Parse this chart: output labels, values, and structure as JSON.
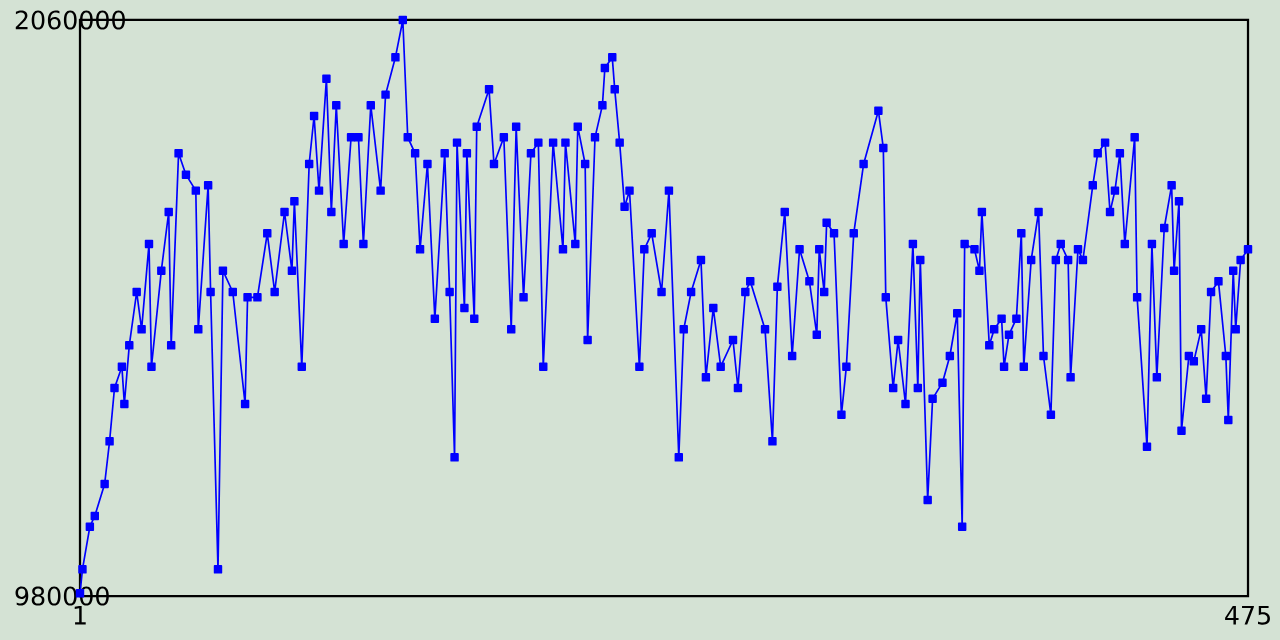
{
  "chart_data": {
    "type": "line",
    "color": "#0000ff",
    "marker": "square",
    "line_style": "solid",
    "xlim": [
      1,
      475
    ],
    "xticks": [
      1,
      475
    ],
    "ylim": [
      980000,
      2060000
    ],
    "yticks": [
      980000,
      2060000
    ],
    "x": [
      1,
      2,
      5,
      7,
      11,
      13,
      15,
      18,
      19,
      21,
      24,
      26,
      29,
      30,
      34,
      37,
      38,
      41,
      44,
      48,
      49,
      53,
      54,
      57,
      59,
      63,
      68,
      69,
      73,
      77,
      80,
      84,
      87,
      88,
      91,
      94,
      96,
      98,
      101,
      103,
      105,
      108,
      111,
      114,
      116,
      119,
      123,
      125,
      129,
      132,
      134,
      137,
      139,
      142,
      145,
      149,
      151,
      153,
      154,
      157,
      158,
      161,
      162,
      167,
      169,
      173,
      176,
      178,
      181,
      184,
      187,
      189,
      193,
      197,
      198,
      202,
      203,
      206,
      207,
      210,
      213,
      214,
      217,
      218,
      220,
      222,
      224,
      228,
      230,
      233,
      237,
      240,
      244,
      246,
      249,
      253,
      255,
      258,
      261,
      266,
      268,
      271,
      273,
      279,
      282,
      284,
      287,
      290,
      293,
      297,
      300,
      301,
      303,
      304,
      307,
      310,
      312,
      315,
      319,
      325,
      327,
      328,
      331,
      333,
      336,
      339,
      341,
      342,
      345,
      347,
      351,
      354,
      357,
      359,
      360,
      364,
      366,
      367,
      370,
      372,
      375,
      376,
      378,
      381,
      383,
      384,
      387,
      390,
      392,
      395,
      397,
      399,
      402,
      403,
      406,
      408,
      412,
      414,
      417,
      419,
      421,
      423,
      425,
      429,
      430,
      434,
      436,
      438,
      441,
      444,
      445,
      447,
      448,
      451,
      453,
      456,
      458,
      460,
      463,
      466,
      467,
      469,
      470,
      472,
      475
    ],
    "values": [
      985000,
      1030000,
      1110000,
      1130000,
      1190000,
      1270000,
      1370000,
      1410000,
      1340000,
      1450000,
      1550000,
      1480000,
      1640000,
      1410000,
      1590000,
      1700000,
      1450000,
      1810000,
      1770000,
      1740000,
      1480000,
      1750000,
      1550000,
      1030000,
      1590000,
      1550000,
      1340000,
      1540000,
      1540000,
      1660000,
      1550000,
      1700000,
      1590000,
      1720000,
      1410000,
      1790000,
      1880000,
      1740000,
      1950000,
      1700000,
      1900000,
      1640000,
      1840000,
      1840000,
      1640000,
      1900000,
      1740000,
      1920000,
      1990000,
      2060000,
      1840000,
      1810000,
      1630000,
      1790000,
      1500000,
      1810000,
      1550000,
      1240000,
      1830000,
      1520000,
      1810000,
      1500000,
      1860000,
      1930000,
      1790000,
      1840000,
      1480000,
      1860000,
      1540000,
      1810000,
      1830000,
      1410000,
      1830000,
      1630000,
      1830000,
      1640000,
      1860000,
      1790000,
      1460000,
      1840000,
      1900000,
      1970000,
      1990000,
      1930000,
      1830000,
      1710000,
      1740000,
      1410000,
      1630000,
      1660000,
      1550000,
      1740000,
      1240000,
      1480000,
      1550000,
      1610000,
      1390000,
      1520000,
      1410000,
      1460000,
      1370000,
      1550000,
      1570000,
      1480000,
      1270000,
      1560000,
      1700000,
      1430000,
      1630000,
      1570000,
      1470000,
      1630000,
      1550000,
      1680000,
      1660000,
      1320000,
      1410000,
      1660000,
      1790000,
      1890000,
      1820000,
      1540000,
      1370000,
      1460000,
      1340000,
      1640000,
      1370000,
      1610000,
      1160000,
      1350000,
      1380000,
      1430000,
      1510000,
      1110000,
      1640000,
      1630000,
      1590000,
      1700000,
      1450000,
      1480000,
      1500000,
      1410000,
      1470000,
      1500000,
      1660000,
      1410000,
      1610000,
      1700000,
      1430000,
      1320000,
      1610000,
      1640000,
      1610000,
      1390000,
      1630000,
      1610000,
      1750000,
      1810000,
      1830000,
      1700000,
      1740000,
      1810000,
      1640000,
      1840000,
      1540000,
      1260000,
      1640000,
      1390000,
      1670000,
      1750000,
      1590000,
      1720000,
      1290000,
      1430000,
      1420000,
      1480000,
      1350000,
      1550000,
      1570000,
      1430000,
      1310000,
      1590000,
      1480000,
      1610000,
      1630000
    ]
  }
}
